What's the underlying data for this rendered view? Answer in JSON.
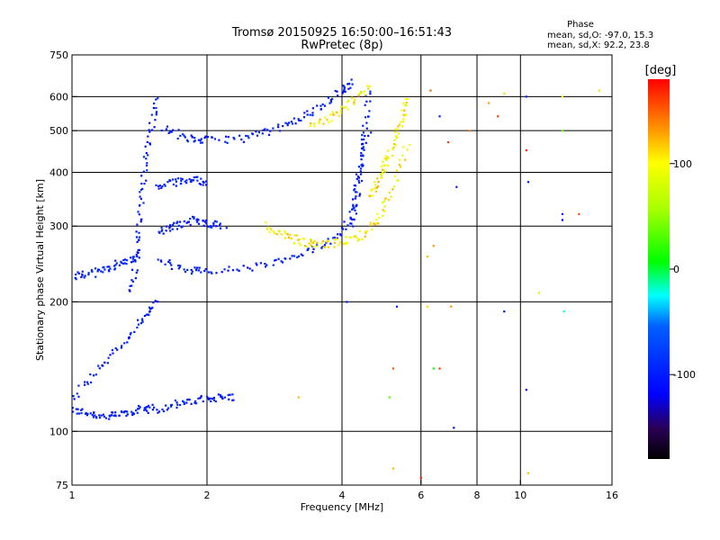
{
  "chart_data": {
    "type": "scatter",
    "title": "Tromsø 20150925 16:50:00–16:51:43",
    "subtitle": "RwPretec (8p)",
    "xlabel": "Frequency [MHz]",
    "ylabel": "Stationary phase Virtual Height [km]",
    "x_scale": "log",
    "y_scale": "log",
    "xlim": [
      1,
      16
    ],
    "ylim": [
      75,
      750
    ],
    "x_ticks": [
      1,
      2,
      4,
      6,
      8,
      10,
      16
    ],
    "x_tick_labels": [
      "1",
      "2",
      "4",
      "6",
      "8",
      "10",
      "16"
    ],
    "x_gridlines": [
      2,
      4,
      6,
      8,
      10
    ],
    "y_ticks": [
      75,
      100,
      200,
      300,
      400,
      500,
      600,
      750
    ],
    "y_tick_labels": [
      "75",
      "100",
      "200",
      "300",
      "400",
      "500",
      "600",
      "750"
    ],
    "y_gridlines": [
      100,
      200,
      300,
      400,
      500,
      600
    ],
    "grid": true,
    "stats": {
      "heading": "Phase",
      "line_o": "mean, sd,O: -97.0, 15.3",
      "line_x": "mean, sd,X:  92.2, 23.8"
    },
    "colorbar": {
      "label": "[deg]",
      "range": [
        -180,
        180
      ],
      "ticks": [
        100,
        0,
        -100
      ],
      "tick_labels": [
        "100",
        "0",
        "-100"
      ]
    },
    "traces": [
      {
        "mode": "O",
        "phase": -100,
        "x": [
          1.0,
          1.1,
          1.2,
          1.3,
          1.4,
          1.5
        ],
        "y": [
          112,
          110,
          108,
          110,
          112,
          115
        ]
      },
      {
        "mode": "O",
        "phase": -100,
        "x": [
          1.0,
          1.15,
          1.3,
          1.45,
          1.55
        ],
        "y": [
          120,
          140,
          160,
          185,
          200
        ]
      },
      {
        "mode": "O",
        "phase": -100,
        "x": [
          1.5,
          1.7,
          1.9,
          2.1,
          2.3
        ],
        "y": [
          112,
          115,
          118,
          120,
          120
        ]
      },
      {
        "mode": "O",
        "phase": -100,
        "x": [
          1.0,
          1.1,
          1.2,
          1.3,
          1.42
        ],
        "y": [
          230,
          232,
          240,
          248,
          255
        ]
      },
      {
        "mode": "O",
        "phase": -100,
        "x": [
          1.35,
          1.4,
          1.42,
          1.45,
          1.5,
          1.55
        ],
        "y": [
          210,
          260,
          320,
          400,
          500,
          600
        ]
      },
      {
        "mode": "O",
        "phase": -100,
        "x": [
          1.55,
          1.8,
          2.0,
          2.5,
          3.0,
          3.5,
          4.0,
          4.3,
          4.6
        ],
        "y": [
          250,
          238,
          235,
          240,
          250,
          265,
          290,
          340,
          520
        ]
      },
      {
        "mode": "O",
        "phase": -100,
        "x": [
          1.6,
          1.8,
          2.0,
          2.4,
          2.8,
          3.2,
          3.6,
          4.0,
          4.2
        ],
        "y": [
          510,
          480,
          475,
          480,
          500,
          530,
          570,
          620,
          650
        ]
      },
      {
        "mode": "O",
        "phase": -100,
        "x": [
          1.55,
          1.7,
          1.85,
          2.0,
          2.2
        ],
        "y": [
          290,
          300,
          310,
          305,
          300
        ]
      },
      {
        "mode": "O",
        "phase": -100,
        "x": [
          1.55,
          1.7,
          1.85,
          2.0
        ],
        "y": [
          370,
          380,
          385,
          380
        ]
      },
      {
        "mode": "O",
        "phase": -100,
        "x": [
          4.2,
          4.3,
          4.4,
          4.5,
          4.6
        ],
        "y": [
          300,
          360,
          420,
          500,
          620
        ]
      },
      {
        "mode": "X",
        "phase": 100,
        "x": [
          2.7,
          3.0,
          3.3,
          3.6,
          4.0,
          4.4,
          4.8,
          5.2,
          5.6
        ],
        "y": [
          300,
          285,
          275,
          272,
          275,
          285,
          310,
          360,
          480
        ]
      },
      {
        "mode": "X",
        "phase": 100,
        "x": [
          4.6,
          4.8,
          5.0,
          5.2,
          5.4,
          5.6
        ],
        "y": [
          350,
          380,
          420,
          460,
          520,
          600
        ]
      },
      {
        "mode": "X",
        "phase": 100,
        "x": [
          3.4,
          3.8,
          4.2,
          4.6
        ],
        "y": [
          510,
          540,
          580,
          630
        ]
      }
    ],
    "scatter_points": [
      {
        "x": 6.3,
        "y": 620,
        "phase": 150
      },
      {
        "x": 6.6,
        "y": 540,
        "phase": -100
      },
      {
        "x": 6.9,
        "y": 470,
        "phase": 160
      },
      {
        "x": 7.2,
        "y": 370,
        "phase": -100
      },
      {
        "x": 7.7,
        "y": 500,
        "phase": 140
      },
      {
        "x": 8.5,
        "y": 580,
        "phase": 130
      },
      {
        "x": 8.9,
        "y": 540,
        "phase": 160
      },
      {
        "x": 9.2,
        "y": 610,
        "phase": 110
      },
      {
        "x": 10.3,
        "y": 600,
        "phase": -100
      },
      {
        "x": 10.3,
        "y": 450,
        "phase": 170
      },
      {
        "x": 10.4,
        "y": 380,
        "phase": -100
      },
      {
        "x": 12.4,
        "y": 600,
        "phase": 100
      },
      {
        "x": 12.4,
        "y": 500,
        "phase": 40
      },
      {
        "x": 12.4,
        "y": 320,
        "phase": -100
      },
      {
        "x": 12.4,
        "y": 310,
        "phase": -120
      },
      {
        "x": 12.5,
        "y": 190,
        "phase": -20
      },
      {
        "x": 13.5,
        "y": 320,
        "phase": 150
      },
      {
        "x": 15.0,
        "y": 620,
        "phase": 110
      },
      {
        "x": 11.0,
        "y": 210,
        "phase": 110
      },
      {
        "x": 6.2,
        "y": 255,
        "phase": 120
      },
      {
        "x": 6.4,
        "y": 270,
        "phase": 130
      },
      {
        "x": 6.2,
        "y": 195,
        "phase": 110
      },
      {
        "x": 7.0,
        "y": 195,
        "phase": 130
      },
      {
        "x": 5.3,
        "y": 195,
        "phase": -100
      },
      {
        "x": 5.2,
        "y": 140,
        "phase": 150
      },
      {
        "x": 5.1,
        "y": 120,
        "phase": 30
      },
      {
        "x": 6.4,
        "y": 140,
        "phase": 10
      },
      {
        "x": 6.6,
        "y": 140,
        "phase": 160
      },
      {
        "x": 7.1,
        "y": 102,
        "phase": -110
      },
      {
        "x": 9.2,
        "y": 190,
        "phase": -100
      },
      {
        "x": 10.3,
        "y": 125,
        "phase": -130
      },
      {
        "x": 5.2,
        "y": 82,
        "phase": 120
      },
      {
        "x": 6.0,
        "y": 78,
        "phase": 170
      },
      {
        "x": 10.4,
        "y": 80,
        "phase": 120
      },
      {
        "x": 4.1,
        "y": 200,
        "phase": -100
      },
      {
        "x": 3.2,
        "y": 120,
        "phase": 120
      },
      {
        "x": 1.7,
        "y": 118,
        "phase": -100
      }
    ]
  }
}
